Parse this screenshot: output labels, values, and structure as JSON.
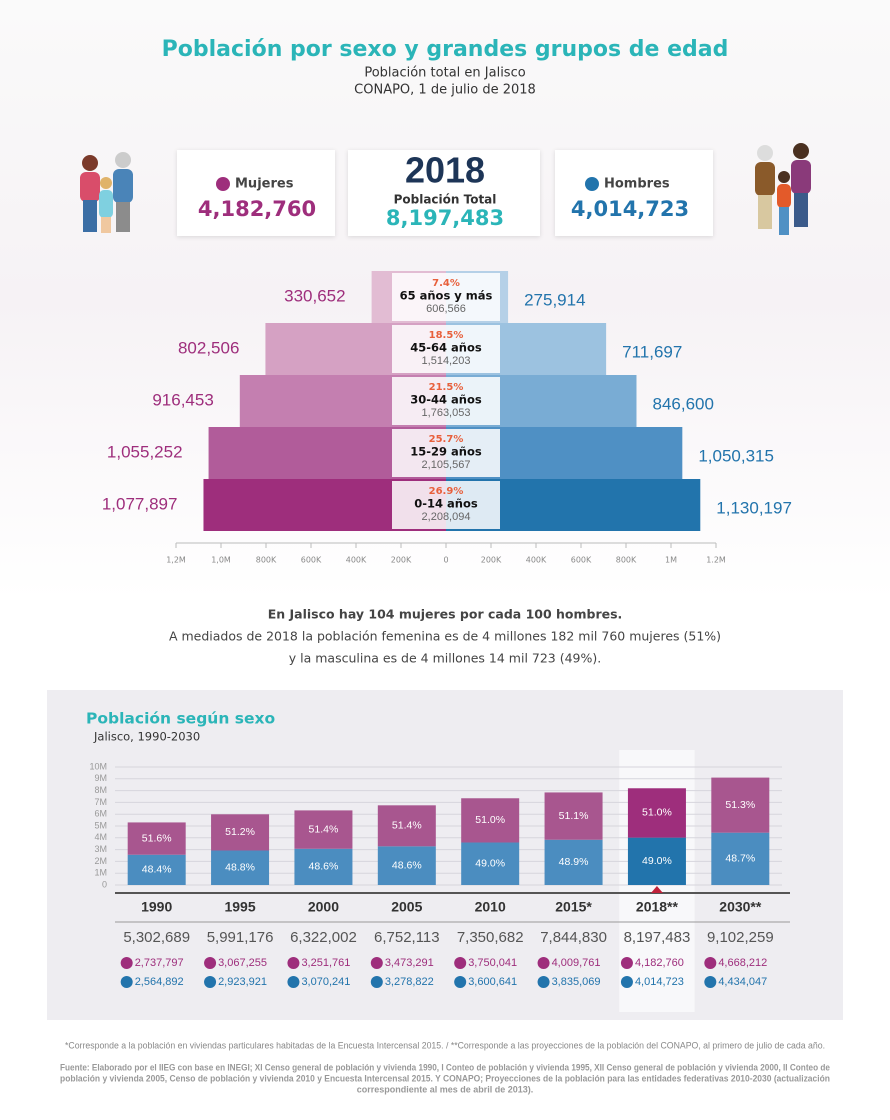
{
  "header": {
    "title": "Población por sexo y grandes grupos de edad",
    "subtitle": "Población total en Jalisco",
    "source_line": "CONAPO, 1 de julio de 2018"
  },
  "summary": {
    "women": {
      "label": "Mujeres",
      "value": "4,182,760"
    },
    "total": {
      "year": "2018",
      "label": "Población Total",
      "value": "8,197,483"
    },
    "men": {
      "label": "Hombres",
      "value": "4,014,723"
    }
  },
  "chart_data": [
    {
      "type": "pyramid",
      "categories": [
        "65 años y más",
        "45-64 años",
        "30-44 años",
        "15-29 años",
        "0-14 años"
      ],
      "series": [
        {
          "colors": [
            "#e2bcd3",
            "#d5a1c3",
            "#c47fb0",
            "#b15c9a",
            "#9e2e7c"
          ],
          "values": [
            330652,
            802506,
            916453,
            1055252,
            1077897
          ],
          "value_labels": [
            "330,652",
            "802,506",
            "916,453",
            "1,055,252",
            "1,077,897"
          ]
        },
        {
          "colors": [
            "#b5d0e7",
            "#9cc2e0",
            "#79acd4",
            "#4f90c4",
            "#2274ac"
          ],
          "values": [
            275914,
            711697,
            846600,
            1050315,
            1130197
          ],
          "value_labels": [
            "275,914",
            "711,697",
            "846,600",
            "1,050,315",
            "1,130,197"
          ]
        }
      ],
      "totals": {
        "values": [
          606566,
          1514203,
          1763053,
          2105567,
          2208094
        ],
        "value_labels": [
          "606,566",
          "1,514,203",
          "1,763,053",
          "2,105,567",
          "2,208,094"
        ]
      },
      "shares": {
        "values": [
          7.4,
          18.5,
          21.5,
          25.7,
          26.9
        ],
        "value_labels": [
          "7.4%",
          "18.5%",
          "21.5%",
          "25.7%",
          "26.9%"
        ]
      },
      "xlim": [
        -1200000,
        1200000
      ],
      "xticks": [
        {
          "value": -1200000,
          "label": "1,2M"
        },
        {
          "value": -1000000,
          "label": "1,0M"
        },
        {
          "value": -800000,
          "label": "800K"
        },
        {
          "value": -600000,
          "label": "600K"
        },
        {
          "value": -400000,
          "label": "400K"
        },
        {
          "value": -200000,
          "label": "200K"
        },
        0,
        {
          "value": 200000,
          "label": "200K"
        },
        {
          "value": 400000,
          "label": "400K"
        },
        {
          "value": 600000,
          "label": "600K"
        },
        {
          "value": 800000,
          "label": "800K"
        },
        {
          "value": 1000000,
          "label": "1M"
        },
        {
          "value": 1200000,
          "label": "1.2M"
        }
      ]
    },
    {
      "type": "stacked-bar",
      "title": "Población según sexo",
      "subtitle": "Jalisco, 1990-2030",
      "categories": [
        "1990",
        "1995",
        "2000",
        "2005",
        "2010",
        "2015*",
        "2018**",
        "2030**"
      ],
      "series": [
        {
          "colors": [
            "#4b8dc0",
            "#4b8dc0",
            "#4b8dc0",
            "#4b8dc0",
            "#4b8dc0",
            "#4b8dc0",
            "#2274ac",
            "#4b8dc0"
          ],
          "values": [
            2564892,
            2923921,
            3070241,
            3278822,
            3600641,
            3835069,
            4014723,
            4434047
          ],
          "value_labels": [
            "2,564,892",
            "2,923,921",
            "3,070,241",
            "3,278,822",
            "3,600,641",
            "3,835,069",
            "4,014,723",
            "4,434,047"
          ],
          "shares": {
            "values": [
              48.4,
              48.8,
              48.6,
              48.6,
              49.0,
              48.9,
              49.0,
              48.7
            ],
            "value_labels": [
              "48.4%",
              "48.8%",
              "48.6%",
              "48.6%",
              "49.0%",
              "48.9%",
              "49.0%",
              "48.7%"
            ]
          }
        },
        {
          "colors": [
            "#a8568f",
            "#a8568f",
            "#a8568f",
            "#a8568f",
            "#a8568f",
            "#a8568f",
            "#9e2e7c",
            "#a8568f"
          ],
          "values": [
            2737797,
            3067255,
            3251761,
            3473291,
            3750041,
            4009761,
            4182760,
            4668212
          ],
          "value_labels": [
            "2,737,797",
            "3,067,255",
            "3,251,761",
            "3,473,291",
            "3,750,041",
            "4,009,761",
            "4,182,760",
            "4,668,212"
          ],
          "shares": {
            "values": [
              51.6,
              51.2,
              51.4,
              51.4,
              51.0,
              51.1,
              51.0,
              51.3
            ],
            "value_labels": [
              "51.6%",
              "51.2%",
              "51.4%",
              "51.4%",
              "51.0%",
              "51.1%",
              "51.0%",
              "51.3%"
            ]
          }
        }
      ],
      "totals": {
        "values": [
          5302689,
          5991176,
          6322002,
          6752113,
          7350682,
          7844830,
          8197483,
          9102259
        ],
        "value_labels": [
          "5,302,689",
          "5,991,176",
          "6,322,002",
          "6,752,113",
          "7,350,682",
          "7,844,830",
          "8,197,483",
          "9,102,259"
        ]
      },
      "ylim": [
        0,
        10000000
      ],
      "yticks": [
        0,
        {
          "value": 1000000,
          "label": "1M"
        },
        {
          "value": 2000000,
          "label": "2M"
        },
        {
          "value": 3000000,
          "label": "3M"
        },
        {
          "value": 4000000,
          "label": "4M"
        },
        {
          "value": 5000000,
          "label": "5M"
        },
        {
          "value": 6000000,
          "label": "6M"
        },
        {
          "value": 7000000,
          "label": "7M"
        },
        {
          "value": 8000000,
          "label": "8M"
        },
        {
          "value": 9000000,
          "label": "9M"
        },
        {
          "value": 10000000,
          "label": "10M"
        }
      ],
      "grid": true,
      "highlight": 6
    }
  ],
  "notes": {
    "ratio": "En Jalisco hay 104 mujeres por cada 100 hombres.",
    "lines": [
      "A mediados de 2018 la población femenina es de 4 millones 182 mil 760 mujeres (51%)",
      "y la masculina es de 4 millones 14 mil 723 (49%)."
    ]
  },
  "footnotes": {
    "note": "*Corresponde a la población en viviendas particulares habitadas de la Encuesta Intercensal 2015. /  **Corresponde a las proyecciones de la población del CONAPO, al primero de julio de cada año.",
    "source": [
      "Fuente: Elaborado por el IIEG con base en INEGI; XI Censo general de población y vivienda 1990, I Conteo de población y vivienda 1995, XII Censo general de población y vivienda 2000, II Conteo de",
      "población y vivienda 2005, Censo de población y vivienda 2010 y Encuesta Intercensal 2015. Y CONAPO; Proyecciones de la población para las entidades federativas 2010-2030 (actualización",
      "correspondiente al mes de abril de 2013)."
    ]
  }
}
